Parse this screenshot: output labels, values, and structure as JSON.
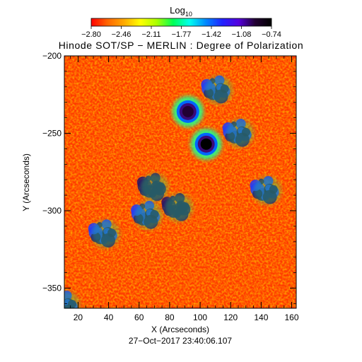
{
  "colorbar": {
    "label_main": "Log",
    "label_sub": "10",
    "ticks": [
      "−2.80",
      "−2.46",
      "−2.11",
      "−1.77",
      "−1.42",
      "−1.08",
      "−0.74"
    ],
    "gradient": [
      "#ff0000",
      "#ff6600",
      "#ffaa00",
      "#ffff00",
      "#aaff00",
      "#00ff55",
      "#00ffee",
      "#0088ff",
      "#2222ff",
      "#5500dd",
      "#220033",
      "#000000"
    ]
  },
  "chart_data": {
    "type": "heatmap",
    "title": "Hinode SOT/SP − MERLIN : Degree of Polarization",
    "xlabel": "X (Arcseconds)",
    "ylabel": "Y (Arcseconds)",
    "xlim": [
      11,
      163
    ],
    "ylim": [
      -363,
      -200
    ],
    "x_ticks": [
      20,
      40,
      60,
      80,
      100,
      120,
      140,
      160
    ],
    "x_tick_labels": [
      "20",
      "40",
      "60",
      "80",
      "100",
      "120",
      "140",
      "160"
    ],
    "y_ticks": [
      -200,
      -250,
      -300,
      -350
    ],
    "y_tick_labels": [
      "−200",
      "−250",
      "−300",
      "−350"
    ],
    "value_range": [
      -2.8,
      -0.74
    ],
    "background_level": -2.65,
    "features": [
      {
        "kind": "spot",
        "x": 104,
        "y": -257,
        "value": -0.74
      },
      {
        "kind": "spot",
        "x": 92,
        "y": -236,
        "value": -0.95
      },
      {
        "kind": "patch",
        "x": 70,
        "y": -285,
        "value": -1.2
      },
      {
        "kind": "patch",
        "x": 86,
        "y": -298,
        "value": -1.25
      },
      {
        "kind": "patch",
        "x": 66,
        "y": -303,
        "value": -1.3
      },
      {
        "kind": "patch",
        "x": 112,
        "y": -222,
        "value": -1.5
      },
      {
        "kind": "patch",
        "x": 126,
        "y": -250,
        "value": -1.6
      },
      {
        "kind": "patch",
        "x": 144,
        "y": -287,
        "value": -1.5
      },
      {
        "kind": "patch",
        "x": 38,
        "y": -315,
        "value": -1.6
      },
      {
        "kind": "patch",
        "x": 12,
        "y": -361,
        "value": -1.3
      }
    ]
  },
  "timestamp": "27−Oct−2017 23:40:06.107"
}
